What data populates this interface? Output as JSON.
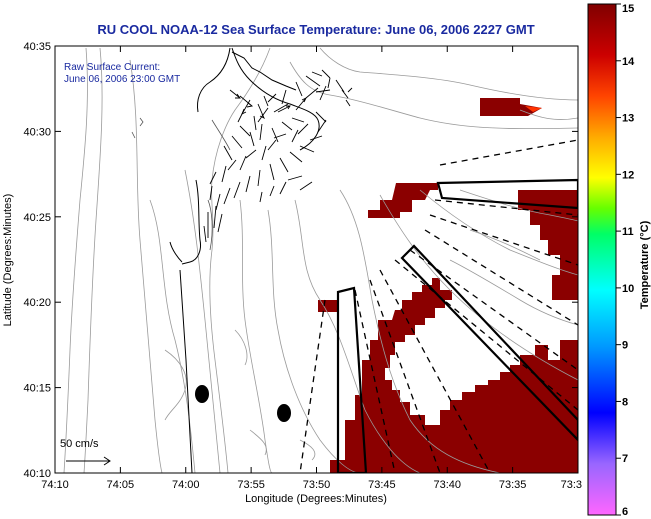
{
  "title": "RU COOL  NOAA-12  Sea Surface Temperature:  June 06, 2006 2227 GMT",
  "inset": {
    "line1": "Raw Surface Current:",
    "line2": "June 06, 2006 23:00 GMT"
  },
  "scale_label": "50 cm/s",
  "axes": {
    "xlabel": "Longitude (Degrees:Minutes)",
    "ylabel": "Latitude (Degrees:Minutes)",
    "x_ticks": [
      "74:10",
      "74:05",
      "74:00",
      "73:55",
      "73:50",
      "73:45",
      "73:40",
      "73:35",
      "73:3"
    ],
    "y_ticks": [
      "40:35",
      "40:30",
      "40:25",
      "40:20",
      "40:15",
      "40:10"
    ]
  },
  "colorbar": {
    "label": "Temperature (°C)",
    "ticks": [
      "15",
      "14",
      "13",
      "12",
      "11",
      "10",
      "9",
      "8",
      "7",
      "6"
    ],
    "min": 6,
    "max": 15,
    "colors": [
      "#ff66ff",
      "#9966ff",
      "#0000ff",
      "#0099ff",
      "#00ffff",
      "#00ff66",
      "#66ff00",
      "#ffff00",
      "#ffaa00",
      "#ff4400",
      "#cc0000",
      "#800000"
    ]
  },
  "colors": {
    "sst_patch": "#8b0000",
    "title_color": "#1a2aa0"
  }
}
